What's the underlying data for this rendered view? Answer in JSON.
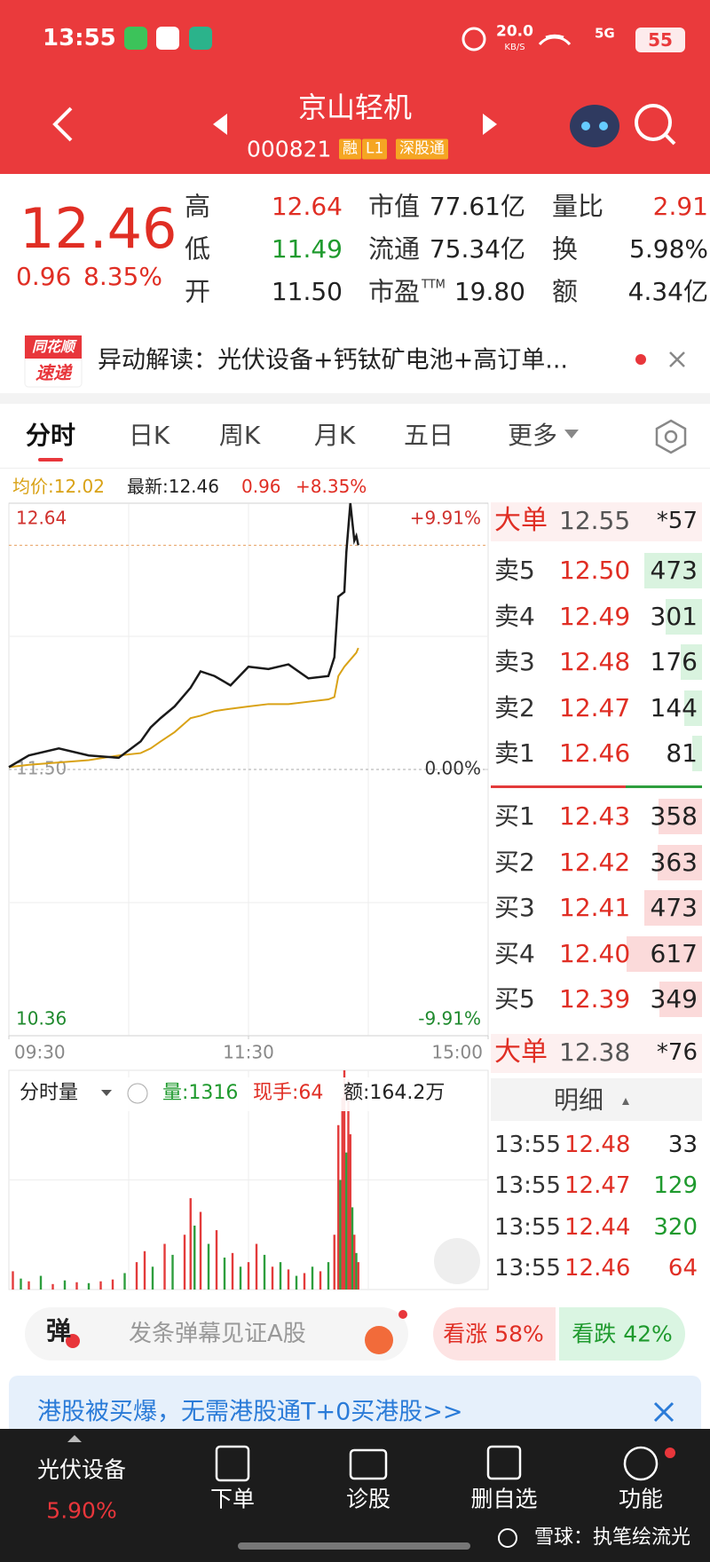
{
  "status_bar": {
    "time": "13:55",
    "net_speed": "20.0",
    "net_unit": "KB/S",
    "signal": "5G",
    "battery": "55"
  },
  "header": {
    "name": "京山轻机",
    "code": "000821",
    "tags": [
      "融",
      "L1",
      "深股通"
    ]
  },
  "quote": {
    "price": "12.46",
    "change": "0.96",
    "change_pct": "8.35%",
    "stats": [
      [
        {
          "label": "高",
          "value": "12.64"
        },
        {
          "label": "市值",
          "value": "77.61亿"
        },
        {
          "label": "量比",
          "value": "2.91"
        }
      ],
      [
        {
          "label": "低",
          "value": "11.49"
        },
        {
          "label": "流通",
          "value": "75.34亿"
        },
        {
          "label": "换",
          "value": "5.98%"
        }
      ],
      [
        {
          "label": "开",
          "value": "11.50"
        },
        {
          "label": "市盈",
          "sup": "TTM",
          "value": "19.80"
        },
        {
          "label": "额",
          "value": "4.34亿"
        }
      ]
    ]
  },
  "alert": {
    "logo_top": "同花顺",
    "logo_bottom": "速递",
    "text": "异动解读：光伏设备+钙钛矿电池+高订单..."
  },
  "tabs": [
    "分时",
    "日K",
    "周K",
    "月K",
    "五日",
    "更多"
  ],
  "info": {
    "avg": "均价:12.02",
    "latest": "最新:12.46",
    "change": "0.96",
    "change_pct": "+8.35%"
  },
  "chart_data": [
    {
      "type": "line",
      "x": [
        0,
        10,
        25,
        40,
        55,
        66,
        71,
        76,
        83,
        91,
        96,
        103,
        111,
        120,
        130,
        140,
        150,
        160,
        163,
        165,
        168,
        169,
        171,
        173,
        174,
        175
      ],
      "series": [
        {
          "color": "#1a1a1a",
          "values": [
            11.51,
            11.56,
            11.59,
            11.56,
            11.55,
            11.62,
            11.68,
            11.72,
            11.77,
            11.85,
            11.92,
            11.9,
            11.86,
            11.94,
            11.93,
            11.95,
            11.89,
            11.9,
            11.98,
            12.24,
            12.26,
            12.43,
            12.64,
            12.48,
            12.5,
            12.46
          ]
        },
        {
          "color": "#d9a216",
          "values": [
            11.51,
            11.52,
            11.53,
            11.54,
            11.56,
            11.57,
            11.59,
            11.62,
            11.66,
            11.72,
            11.73,
            11.75,
            11.76,
            11.77,
            11.78,
            11.78,
            11.79,
            11.8,
            11.81,
            11.9,
            11.94,
            11.95,
            11.97,
            11.99,
            12.0,
            12.02
          ]
        }
      ],
      "xlim": [
        0,
        240
      ],
      "xticks": [
        {
          "value": 0,
          "label": "09:30"
        },
        {
          "value": 120,
          "label": "11:30"
        },
        {
          "value": 240,
          "label": "15:00"
        }
      ],
      "ylim": [
        10.36,
        12.64
      ],
      "yticks": [
        12.64,
        {
          "value": 11.5,
          "label": "11.50"
        },
        10.36
      ],
      "y2lim": [
        -9.91,
        9.91
      ],
      "y2ticks": [
        {
          "value": 9.91,
          "label": "+9.91%"
        },
        {
          "value": 0,
          "label": "0.00%"
        },
        {
          "value": -9.91,
          "label": "-9.91%"
        }
      ]
    },
    {
      "type": "bar",
      "title": "分时量",
      "volume": "量:1316",
      "last": "现手:64",
      "amount": "额:164.2万",
      "x": [
        2,
        6,
        10,
        16,
        22,
        28,
        34,
        40,
        46,
        52,
        58,
        64,
        68,
        72,
        78,
        82,
        88,
        91,
        93,
        96,
        100,
        104,
        108,
        112,
        116,
        120,
        124,
        128,
        132,
        136,
        140,
        144,
        148,
        152,
        156,
        160,
        163,
        165,
        166,
        167,
        168,
        169,
        170,
        171,
        172,
        173,
        174,
        175
      ],
      "values": [
        200,
        120,
        90,
        150,
        60,
        100,
        80,
        70,
        90,
        110,
        180,
        300,
        420,
        250,
        500,
        380,
        600,
        1000,
        700,
        850,
        500,
        650,
        350,
        400,
        250,
        300,
        500,
        380,
        250,
        300,
        220,
        150,
        180,
        250,
        200,
        300,
        600,
        1800,
        1200,
        2100,
        2400,
        1500,
        2300,
        1700,
        900,
        600,
        400,
        300
      ],
      "bar_colors": [
        "#e33b3b",
        "#2e9e3e",
        "#e33b3b",
        "#2e9e3e",
        "#e33b3b",
        "#2e9e3e",
        "#e33b3b",
        "#2e9e3e",
        "#e33b3b",
        "#e33b3b",
        "#2e9e3e",
        "#e33b3b",
        "#e33b3b",
        "#2e9e3e",
        "#e33b3b",
        "#2e9e3e",
        "#e33b3b",
        "#e33b3b",
        "#2e9e3e",
        "#e33b3b",
        "#2e9e3e",
        "#e33b3b",
        "#2e9e3e",
        "#e33b3b",
        "#2e9e3e",
        "#e33b3b",
        "#e33b3b",
        "#2e9e3e",
        "#e33b3b",
        "#2e9e3e",
        "#e33b3b",
        "#2e9e3e",
        "#e33b3b",
        "#2e9e3e",
        "#e33b3b",
        "#2e9e3e",
        "#e33b3b",
        "#e33b3b",
        "#2e9e3e",
        "#e33b3b",
        "#e33b3b",
        "#2e9e3e",
        "#e33b3b",
        "#e33b3b",
        "#2e9e3e",
        "#e33b3b",
        "#2e9e3e",
        "#e33b3b"
      ],
      "xlim": [
        0,
        240
      ],
      "ylim": [
        0,
        2400
      ]
    }
  ],
  "order_book": {
    "big_sell": {
      "label": "大单",
      "price": "12.55",
      "volume": "*57"
    },
    "asks": [
      {
        "label": "卖5",
        "price": "12.50",
        "volume": 473
      },
      {
        "label": "卖4",
        "price": "12.49",
        "volume": 301
      },
      {
        "label": "卖3",
        "price": "12.48",
        "volume": 176
      },
      {
        "label": "卖2",
        "price": "12.47",
        "volume": 144
      },
      {
        "label": "卖1",
        "price": "12.46",
        "volume": 81
      }
    ],
    "bids": [
      {
        "label": "买1",
        "price": "12.43",
        "volume": 358
      },
      {
        "label": "买2",
        "price": "12.42",
        "volume": 363
      },
      {
        "label": "买3",
        "price": "12.41",
        "volume": 473
      },
      {
        "label": "买4",
        "price": "12.40",
        "volume": 617
      },
      {
        "label": "买5",
        "price": "12.39",
        "volume": 349
      }
    ],
    "big_buy": {
      "label": "大单",
      "price": "12.38",
      "volume": "*76"
    },
    "detail_title": "明细",
    "trades": [
      {
        "time": "13:55",
        "price": "12.48",
        "volume": 33,
        "color": "#222"
      },
      {
        "time": "13:55",
        "price": "12.47",
        "volume": 129,
        "color": "#1f9a2e"
      },
      {
        "time": "13:55",
        "price": "12.44",
        "volume": 320,
        "color": "#1f9a2e"
      },
      {
        "time": "13:55",
        "price": "12.46",
        "volume": 64,
        "color": "#e02e24"
      }
    ]
  },
  "danmaku": {
    "icon": "弹",
    "placeholder": "发条弹幕见证A股"
  },
  "sentiment": {
    "up": "看涨 58%",
    "down": "看跌 42%"
  },
  "promo": "港股被买爆，无需港股通T+0买港股>>",
  "nav": {
    "sector": "光伏设备",
    "sector_change": "5.90%",
    "items": [
      "下单",
      "诊股",
      "删自选",
      "功能"
    ]
  },
  "watermark": "雪球：执笔绘流光"
}
